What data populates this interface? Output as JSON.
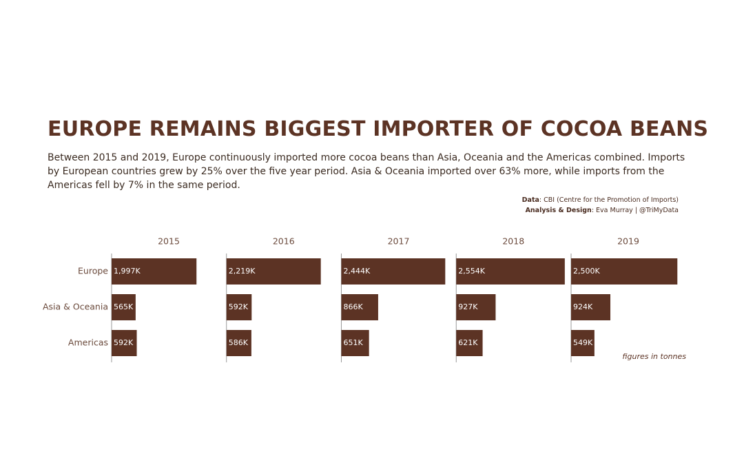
{
  "header": {
    "title": "EUROPE REMAINS BIGGEST IMPORTER OF COCOA BEANS",
    "subtitle": "Between 2015 and 2019, Europe continuously imported more cocoa beans than Asia, Oceania and the Americas combined. Imports by European countries grew by 25% over the five year period. Asia & Oceania imported over 63% more, while imports from the Americas fell by 7% in the same period.",
    "sources": [
      {
        "label": "Data",
        "text": ": CBI (Centre for the Promotion of Imports)"
      },
      {
        "label": "Analysis & Design",
        "text": ": Eva Murray | @TriMyData"
      }
    ]
  },
  "chart_data": {
    "type": "bar",
    "orientation": "horizontal",
    "categories": [
      "Europe",
      "Asia & Oceania",
      "Americas"
    ],
    "series": [
      {
        "name": "2015",
        "color": "#5c3324",
        "values": [
          1997000,
          565000,
          592000
        ],
        "value_labels": [
          "1,997K",
          "565K",
          "592K"
        ]
      },
      {
        "name": "2016",
        "color": "#5c3324",
        "values": [
          2219000,
          592000,
          586000
        ],
        "value_labels": [
          "2,219K",
          "592K",
          "586K"
        ]
      },
      {
        "name": "2017",
        "color": "#5c3324",
        "values": [
          2444000,
          866000,
          651000
        ],
        "value_labels": [
          "2,444K",
          "866K",
          "651K"
        ]
      },
      {
        "name": "2018",
        "color": "#5c3324",
        "values": [
          2554000,
          927000,
          621000
        ],
        "value_labels": [
          "2,554K",
          "927K",
          "621K"
        ]
      },
      {
        "name": "2019",
        "color": "#5c3324",
        "values": [
          2500000,
          924000,
          549000
        ],
        "value_labels": [
          "2,500K",
          "924K",
          "549K"
        ]
      }
    ],
    "xlim": [
      0,
      2690000
    ],
    "annotation": "figures in tonnes"
  }
}
